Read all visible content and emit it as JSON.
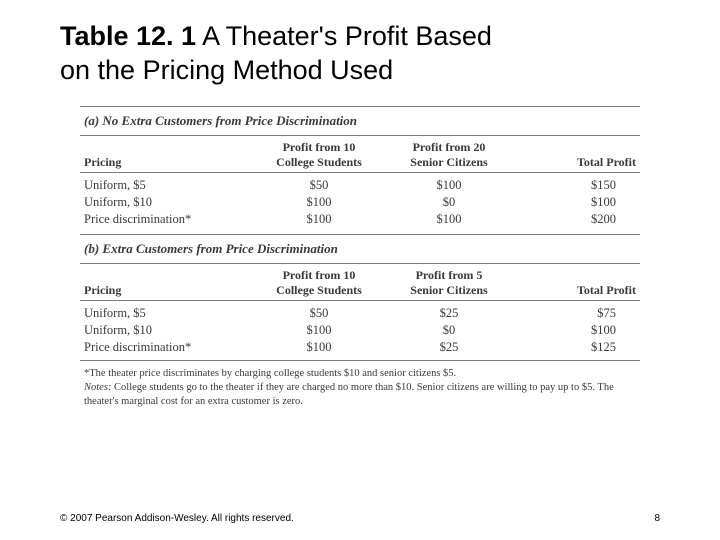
{
  "title": {
    "bold": "Table 12. 1",
    "rest_line1": "  A Theater's Profit Based",
    "line2": "on the Pricing Method Used"
  },
  "colors": {
    "rule": "#6b8388",
    "text": "#3a3a3a",
    "bg": "#ffffff"
  },
  "sections": [
    {
      "header": "(a) No Extra Customers from Price Discrimination",
      "col2_l1": "Profit from 10",
      "col2_l2": "College Students",
      "col3_l1": "Profit from 20",
      "col3_l2": "Senior Citizens",
      "rows": [
        {
          "pricing": "Uniform, $5",
          "c2": "$50",
          "c3": "$100",
          "c4": "$150"
        },
        {
          "pricing": "Uniform, $10",
          "c2": "$100",
          "c3": "$0",
          "c4": "$100"
        },
        {
          "pricing": "Price discrimination*",
          "c2": "$100",
          "c3": "$100",
          "c4": "$200"
        }
      ]
    },
    {
      "header": "(b) Extra Customers from Price Discrimination",
      "col2_l1": "Profit from 10",
      "col2_l2": "College Students",
      "col3_l1": "Profit from 5",
      "col3_l2": "Senior Citizens",
      "rows": [
        {
          "pricing": "Uniform, $5",
          "c2": "$50",
          "c3": "$25",
          "c4": "$75"
        },
        {
          "pricing": "Uniform, $10",
          "c2": "$100",
          "c3": "$0",
          "c4": "$100"
        },
        {
          "pricing": "Price discrimination*",
          "c2": "$100",
          "c3": "$25",
          "c4": "$125"
        }
      ]
    }
  ],
  "common_headers": {
    "pricing": "Pricing",
    "total": "Total Profit"
  },
  "footnote": "*The theater price discriminates by charging college students $10 and senior citizens $5.",
  "notes_label": "Notes:",
  "notes_text": " College students go to the theater if they are charged no more than $10. Senior citizens are willing to pay up to $5. The theater's marginal cost for an extra customer is zero.",
  "footer": {
    "copyright": "© 2007 Pearson Addison-Wesley. All rights reserved.",
    "page": "8"
  }
}
